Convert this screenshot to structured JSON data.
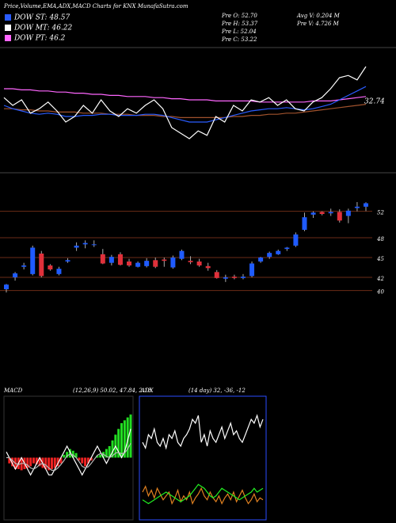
{
  "header": {
    "title": "Price,Volume,EMA,ADX,MACD Charts for KNX  MunafaSutra.com",
    "legend": [
      {
        "label": "DOW ST: 48.57",
        "color": "#2a5cff"
      },
      {
        "label": "DOW MT: 46.22",
        "color": "#ffffff"
      },
      {
        "label": "DOW PT: 46.2",
        "color": "#ff66ff"
      }
    ],
    "stats": [
      "Pre  O: 52.70",
      "Pre  H: 53.37",
      "Pre  L: 52.04",
      "Pre  C: 53.22",
      "Avg  V: 0.204  M",
      "Pre  V: 4.726  M"
    ]
  },
  "chart_data": [
    {
      "type": "line",
      "ylim": [
        0,
        100
      ],
      "annotation": "32.74",
      "series": [
        {
          "color": "#a0522d",
          "values": [
            52,
            52,
            51,
            51,
            50,
            50,
            49,
            49,
            49,
            48,
            48,
            48,
            47,
            47,
            47,
            46,
            46,
            46,
            45,
            45,
            44,
            44,
            44,
            44,
            44,
            44,
            45,
            45,
            46,
            46,
            47,
            47,
            48,
            48,
            49,
            50,
            51,
            52,
            53,
            54,
            55,
            56
          ]
        },
        {
          "color": "#ff66ff",
          "values": [
            70,
            70,
            69,
            69,
            68,
            68,
            67,
            67,
            66,
            66,
            65,
            65,
            64,
            64,
            63,
            63,
            63,
            62,
            62,
            61,
            61,
            60,
            60,
            60,
            59,
            59,
            59,
            59,
            59,
            58,
            58,
            58,
            58,
            58,
            58,
            59,
            59,
            59,
            60,
            61,
            62,
            63
          ]
        },
        {
          "color": "#2a5cff",
          "values": [
            55,
            52,
            50,
            48,
            47,
            48,
            47,
            45,
            45,
            46,
            46,
            47,
            47,
            46,
            46,
            46,
            47,
            47,
            46,
            44,
            42,
            40,
            40,
            40,
            42,
            44,
            46,
            48,
            50,
            51,
            52,
            52,
            53,
            52,
            51,
            52,
            54,
            56,
            60,
            64,
            68,
            72
          ]
        },
        {
          "color": "#ffffff",
          "values": [
            62,
            55,
            60,
            48,
            52,
            58,
            50,
            40,
            45,
            55,
            48,
            60,
            50,
            45,
            52,
            48,
            55,
            60,
            52,
            35,
            30,
            25,
            32,
            28,
            45,
            40,
            55,
            50,
            60,
            58,
            62,
            55,
            60,
            52,
            50,
            58,
            62,
            70,
            80,
            82,
            78,
            90
          ]
        }
      ]
    },
    {
      "type": "candlestick",
      "ylim": [
        39,
        57
      ],
      "yticks": [
        52,
        48,
        45,
        42,
        40
      ],
      "up_color": "#1f5bff",
      "down_color": "#e0303a",
      "grid_color": "#6b2c17",
      "open": [
        40.2,
        42,
        43.6,
        42.5,
        45.6,
        43.8,
        42.5,
        44.4,
        46.5,
        47,
        46.9,
        45.5,
        44.2,
        45.5,
        44.4,
        43.6,
        43.7,
        44.6,
        44.7,
        43.5,
        44.8,
        44.5,
        44.4,
        43.7,
        42.8,
        41.8,
        42.1,
        41.9,
        42.2,
        44.4,
        45.1,
        45.5,
        46.3,
        46.8,
        49.2,
        51.5,
        51.9,
        51.7,
        51.9,
        51.3,
        52.5,
        52.7
      ],
      "high": [
        41,
        42.8,
        44.2,
        46.8,
        46,
        44,
        43.6,
        44.9,
        47.3,
        47.6,
        47.6,
        46.3,
        45.4,
        45.8,
        44.8,
        44.4,
        44.9,
        45,
        45,
        45.3,
        46.2,
        45.2,
        44.8,
        44.2,
        43.1,
        42.4,
        42.4,
        42.5,
        44.4,
        45.1,
        45.9,
        46.2,
        46.6,
        48.8,
        51.8,
        52,
        52,
        52.4,
        52.3,
        52.4,
        53.4,
        53.37
      ],
      "low": [
        39.7,
        41.5,
        43.2,
        42.3,
        42,
        43,
        42.3,
        44.2,
        46,
        46.4,
        46.6,
        44,
        43.8,
        43.8,
        43.6,
        43.5,
        43.5,
        43.4,
        43.6,
        43.3,
        44.6,
        44,
        43.6,
        43,
        41.8,
        41.3,
        41.7,
        41.7,
        42,
        44.2,
        44.8,
        45.4,
        46,
        46.6,
        49,
        51,
        51.4,
        51.3,
        50.3,
        50.2,
        52,
        52.04
      ],
      "close": [
        40.9,
        42.6,
        43.8,
        46.5,
        42.2,
        43.2,
        43.3,
        44.6,
        46.8,
        47.2,
        47,
        44.1,
        45.1,
        43.9,
        43.8,
        44.2,
        44.5,
        43.6,
        44.5,
        45,
        46,
        44.3,
        43.8,
        43.4,
        41.9,
        42,
        41.9,
        42.1,
        44.1,
        45,
        45.7,
        46,
        46.5,
        48.5,
        51.1,
        51.8,
        51.6,
        51.9,
        50.6,
        52.1,
        52.7,
        53.22
      ]
    },
    {
      "type": "macd",
      "title": "MACD",
      "subtitle": "(12,26,9) 50.02, 47.84, 2.18",
      "ylim": [
        -10,
        10
      ],
      "pos_color": "#22dd22",
      "neg_color": "#ee2222",
      "histogram": [
        0,
        -1,
        -1.5,
        -2,
        -2,
        -2.2,
        -2,
        -1.8,
        -1.5,
        -1,
        -1.2,
        -1.5,
        -1.8,
        -2,
        -2.2,
        -2,
        -1.8,
        -1.5,
        -1,
        0.5,
        1,
        1.5,
        1.2,
        0.8,
        -0.5,
        -1,
        -1.5,
        -1,
        -0.5,
        0,
        0.3,
        0.5,
        1,
        1.5,
        2,
        3,
        4,
        5,
        6,
        6.5,
        7,
        7.5
      ],
      "series": [
        {
          "color": "#ffffff",
          "values": [
            1,
            0,
            -1,
            -2,
            -1,
            0,
            -1,
            -2,
            -3,
            -2,
            -1,
            0,
            -1,
            -2,
            -3,
            -3,
            -2,
            -1,
            0,
            1,
            2,
            1,
            0,
            -1,
            -2,
            -3,
            -2,
            -1,
            0,
            1,
            2,
            1,
            0,
            -1,
            0,
            1,
            2,
            1,
            0,
            1,
            3,
            5
          ]
        },
        {
          "color": "#bbbbbb",
          "values": [
            0,
            0,
            -0.5,
            -1,
            -1.2,
            -1,
            -1,
            -1.3,
            -1.8,
            -2,
            -1.7,
            -1.2,
            -1,
            -1.3,
            -1.8,
            -2.2,
            -2.2,
            -1.8,
            -1.2,
            -0.5,
            0.3,
            0.6,
            0.5,
            0,
            -0.7,
            -1.5,
            -1.8,
            -1.6,
            -1,
            -0.3,
            0.4,
            0.7,
            0.6,
            0.2,
            0,
            0.3,
            0.8,
            0.9,
            0.7,
            0.8,
            1.5,
            2.5
          ]
        }
      ]
    },
    {
      "type": "adx",
      "title": "ADX",
      "subtitle": "(14 day) 32, -36, -12",
      "ylim": [
        0,
        60
      ],
      "border_color": "#2a4cff",
      "series": [
        {
          "color": "#ffffff",
          "values": [
            38,
            35,
            42,
            40,
            45,
            38,
            36,
            40,
            35,
            42,
            40,
            44,
            38,
            36,
            40,
            42,
            45,
            50,
            48,
            52,
            38,
            42,
            36,
            44,
            40,
            38,
            42,
            46,
            40,
            44,
            48,
            42,
            44,
            40,
            38,
            42,
            46,
            50,
            48,
            52,
            46,
            50
          ]
        },
        {
          "color": "#e08020",
          "values": [
            12,
            15,
            10,
            13,
            9,
            14,
            11,
            8,
            10,
            12,
            6,
            9,
            13,
            7,
            10,
            8,
            12,
            6,
            9,
            11,
            14,
            10,
            8,
            12,
            9,
            7,
            10,
            6,
            9,
            11,
            8,
            12,
            7,
            10,
            13,
            9,
            6,
            8,
            11,
            7,
            9,
            8
          ]
        },
        {
          "color": "#22ee22",
          "values": [
            8,
            7,
            6,
            7,
            8,
            9,
            10,
            11,
            12,
            11,
            10,
            9,
            8,
            7,
            8,
            9,
            10,
            12,
            14,
            16,
            15,
            14,
            12,
            10,
            9,
            10,
            12,
            14,
            13,
            12,
            11,
            10,
            9,
            8,
            9,
            10,
            11,
            12,
            14,
            12,
            13,
            14
          ]
        }
      ]
    }
  ]
}
